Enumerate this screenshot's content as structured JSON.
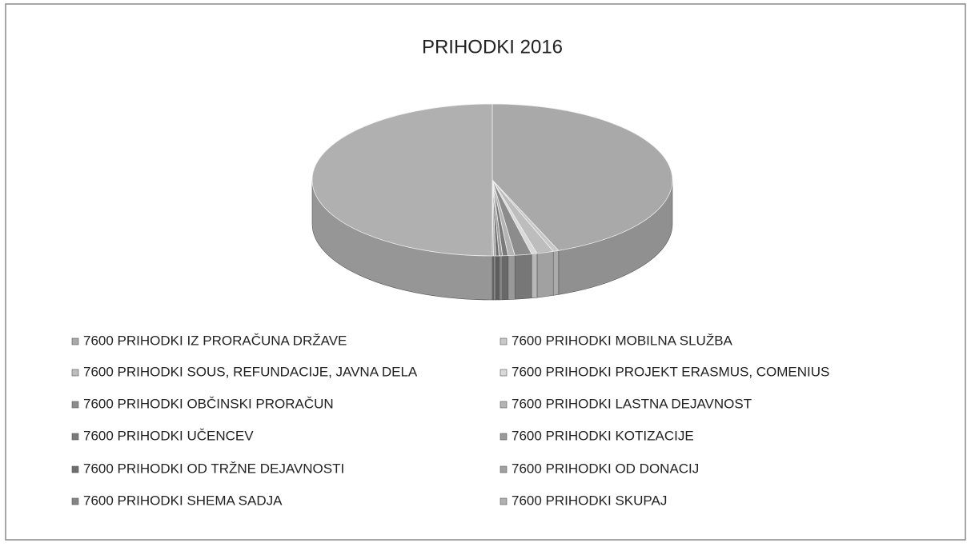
{
  "chart_data": {
    "type": "pie3d",
    "title": "PRIHODKI 2016",
    "categories": [
      "7600 PRIHODKI IZ PRORAČUNA DRŽAVE",
      "7600 PRIHODKI MOBILNA SLUŽBA",
      "7600 PRIHODKI SOUS, REFUNDACIJE, JAVNA DELA",
      "7600 PRIHODKI PROJEKT ERASMUS, COMENIUS",
      "7600 PRIHODKI OBČINSKI PRORAČUN",
      "7600 PRIHODKI LASTNA DEJAVNOST",
      "7600 PRIHODKI UČENCEV",
      "7600 PRIHODKI KOTIZACIJE",
      "7600 PRIHODKI OD TRŽNE DEJAVNOSTI",
      "7600 PRIHODKI OD DONACIJ",
      "7600 PRIHODKI SHEMA SADJA",
      "7600 PRIHODKI SKUPAJ"
    ],
    "values": [
      44,
      0.5,
      1.5,
      0.5,
      1.5,
      0.6,
      0.5,
      0.3,
      0.3,
      0.2,
      0.1,
      50
    ],
    "colors": [
      "#a9a9a9",
      "#c8c8c8",
      "#bdbdbd",
      "#d9d9d9",
      "#8c8c8c",
      "#b4b4b4",
      "#7a7a7a",
      "#9a9a9a",
      "#6e6e6e",
      "#a0a0a0",
      "#858585",
      "#b0b0b0"
    ],
    "legend": "bottom"
  }
}
